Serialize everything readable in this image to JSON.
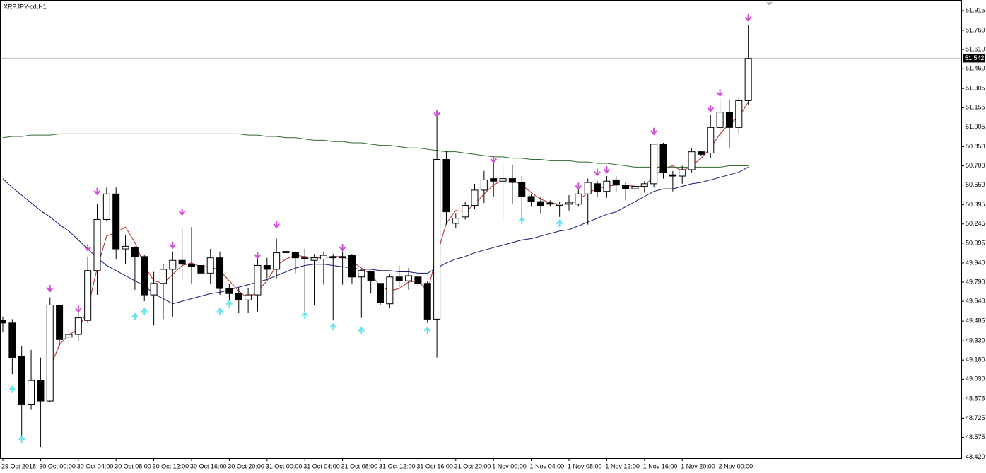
{
  "chart_data": {
    "type": "candlestick",
    "title": "XRPJPY-cd,H1",
    "categories": [
      "29 Oct 2018",
      null,
      null,
      null,
      "30 Oct 00:00",
      null,
      null,
      null,
      "30 Oct 04:00",
      null,
      null,
      null,
      "30 Oct 08:00",
      null,
      null,
      null,
      "30 Oct 12:00",
      null,
      null,
      null,
      "30 Oct 16:00",
      null,
      null,
      null,
      "30 Oct 20:00",
      null,
      null,
      null,
      "31 Oct 00:00",
      null,
      null,
      null,
      "31 Oct 04:00",
      null,
      null,
      null,
      "31 Oct 08:00",
      null,
      null,
      null,
      "31 Oct 12:00",
      null,
      null,
      null,
      "31 Oct 16:00",
      null,
      null,
      null,
      "31 Oct 20:00",
      null,
      null,
      null,
      "1 Nov 00:00",
      null,
      null,
      null,
      "1 Nov 04:00",
      null,
      null,
      null,
      "1 Nov 08:00",
      null,
      null,
      null,
      "1 Nov 12:00",
      null,
      null,
      null,
      "1 Nov 16:00",
      null,
      null,
      null,
      "1 Nov 20:00",
      null,
      null,
      null,
      "2 Nov 00:00",
      null,
      null,
      null
    ],
    "open": [
      49.49,
      49.47,
      49.21,
      48.83,
      49.02,
      48.86,
      49.61,
      49.36,
      49.38,
      49.49,
      49.88,
      50.28,
      50.48,
      50.05,
      50.06,
      49.99,
      49.69,
      49.78,
      49.89,
      49.96,
      49.93,
      49.92,
      49.86,
      49.98,
      49.74,
      49.7,
      49.65,
      49.69,
      49.92,
      49.89,
      50.03,
      50.02,
      49.98,
      49.96,
      49.97,
      49.99,
      49.99,
      50.0,
      49.83,
      49.87,
      49.78,
      49.62,
      49.83,
      49.8,
      49.83,
      49.78,
      49.5,
      50.75,
      50.25,
      50.3,
      50.39,
      50.51,
      50.6,
      50.58,
      50.6,
      50.57,
      50.46,
      50.42,
      50.41,
      50.39,
      50.4,
      50.4,
      50.48,
      50.56,
      50.5,
      50.59,
      50.55,
      50.52,
      50.54,
      50.56,
      50.87,
      50.63,
      50.62,
      50.67,
      50.81,
      50.8,
      51.0,
      51.12,
      51.0,
      51.21
    ],
    "high": [
      49.52,
      49.5,
      49.29,
      49.26,
      49.2,
      49.67,
      49.61,
      49.45,
      49.55,
      49.99,
      50.4,
      50.53,
      50.53,
      50.16,
      50.07,
      50.0,
      49.87,
      49.93,
      50.03,
      50.21,
      50.22,
      49.92,
      50.05,
      50.03,
      49.78,
      49.74,
      49.74,
      49.97,
      49.98,
      50.13,
      50.14,
      50.03,
      50.05,
      50.01,
      50.03,
      50.01,
      50.03,
      50.01,
      49.89,
      49.88,
      49.78,
      49.85,
      49.92,
      49.9,
      49.85,
      49.8,
      51.1,
      50.82,
      50.33,
      50.42,
      50.56,
      50.66,
      50.76,
      50.73,
      50.71,
      50.62,
      50.48,
      50.46,
      50.43,
      50.42,
      50.47,
      50.53,
      50.6,
      50.58,
      50.62,
      50.62,
      50.57,
      50.56,
      50.58,
      50.87,
      50.88,
      50.66,
      50.7,
      50.84,
      50.82,
      51.1,
      51.22,
      51.22,
      51.24,
      51.8
    ],
    "low": [
      49.4,
      49.07,
      48.59,
      48.79,
      48.5,
      48.85,
      49.29,
      49.3,
      49.33,
      49.47,
      49.69,
      50.27,
      49.97,
      49.93,
      49.73,
      49.64,
      49.45,
      49.5,
      49.52,
      49.81,
      49.78,
      49.85,
      49.78,
      49.69,
      49.65,
      49.55,
      49.55,
      49.56,
      49.82,
      49.82,
      49.92,
      49.86,
      49.53,
      49.61,
      49.77,
      49.49,
      49.77,
      49.78,
      49.51,
      49.7,
      49.61,
      49.59,
      49.75,
      49.73,
      49.75,
      49.47,
      49.2,
      50.24,
      50.21,
      50.28,
      50.36,
      50.41,
      50.46,
      50.27,
      50.4,
      50.28,
      50.38,
      50.33,
      50.38,
      50.3,
      50.35,
      50.38,
      50.24,
      50.46,
      50.45,
      50.5,
      50.43,
      50.5,
      50.49,
      50.53,
      50.6,
      50.5,
      50.56,
      50.65,
      50.78,
      50.76,
      50.92,
      50.84,
      50.95,
      51.18
    ],
    "close": [
      49.47,
      49.2,
      48.83,
      49.02,
      48.86,
      49.61,
      49.34,
      49.38,
      49.51,
      49.88,
      50.28,
      50.48,
      50.05,
      50.07,
      49.99,
      49.69,
      49.78,
      49.89,
      49.96,
      49.93,
      49.91,
      49.86,
      49.98,
      49.74,
      49.7,
      49.65,
      49.69,
      49.92,
      49.89,
      50.02,
      50.02,
      49.98,
      49.97,
      49.98,
      50.0,
      49.98,
      49.98,
      49.83,
      49.88,
      49.8,
      49.63,
      49.83,
      49.8,
      49.84,
      49.78,
      49.5,
      50.75,
      50.34,
      50.29,
      50.39,
      50.51,
      50.59,
      50.58,
      50.6,
      50.57,
      50.46,
      50.42,
      50.39,
      50.4,
      50.4,
      50.41,
      50.48,
      50.57,
      50.5,
      50.58,
      50.55,
      50.52,
      50.54,
      50.56,
      50.87,
      50.65,
      50.62,
      50.67,
      50.81,
      50.79,
      51.0,
      51.12,
      51.0,
      51.21,
      51.54
    ],
    "up_color": "#ffffff",
    "down_color": "#000000",
    "lines": [
      {
        "color": "#b22222",
        "values": [
          null,
          null,
          null,
          null,
          null,
          49.12,
          49.3,
          49.38,
          49.42,
          49.58,
          49.9,
          50.15,
          50.18,
          50.22,
          50.1,
          49.92,
          49.8,
          49.78,
          49.85,
          49.92,
          49.94,
          49.91,
          49.91,
          49.88,
          49.8,
          49.72,
          49.66,
          49.72,
          49.8,
          49.92,
          49.97,
          50.0,
          49.99,
          49.98,
          49.98,
          49.99,
          49.99,
          49.95,
          49.9,
          49.85,
          49.76,
          49.72,
          49.74,
          49.79,
          49.8,
          49.72,
          50.0,
          50.25,
          50.35,
          50.34,
          50.4,
          50.48,
          50.55,
          50.59,
          50.59,
          50.55,
          50.49,
          50.44,
          50.41,
          50.4,
          50.4,
          50.43,
          50.49,
          50.52,
          50.54,
          50.55,
          50.55,
          50.54,
          50.54,
          50.62,
          50.68,
          50.7,
          50.66,
          50.7,
          50.76,
          50.84,
          50.95,
          51.03,
          51.08,
          51.2
        ]
      },
      {
        "color": "#191970",
        "values": [
          50.6,
          50.53,
          50.47,
          50.41,
          50.35,
          50.3,
          50.24,
          50.19,
          50.12,
          50.05,
          49.98,
          49.92,
          49.88,
          49.84,
          49.8,
          49.76,
          49.7,
          49.66,
          49.62,
          49.64,
          49.66,
          49.68,
          49.7,
          49.71,
          49.73,
          49.75,
          49.77,
          49.79,
          49.81,
          49.84,
          49.87,
          49.9,
          49.92,
          49.93,
          49.93,
          49.92,
          49.91,
          49.9,
          49.89,
          49.89,
          49.88,
          49.88,
          49.87,
          49.87,
          49.86,
          49.86,
          49.9,
          49.94,
          49.97,
          49.99,
          50.02,
          50.04,
          50.06,
          50.08,
          50.1,
          50.12,
          50.13,
          50.15,
          50.17,
          50.19,
          50.2,
          50.23,
          50.26,
          50.29,
          50.32,
          50.34,
          50.38,
          50.42,
          50.46,
          50.5,
          50.52,
          50.52,
          50.54,
          50.56,
          50.57,
          50.59,
          50.61,
          50.63,
          50.65,
          50.69
        ]
      },
      {
        "color": "#2e6b2e",
        "values": [
          50.92,
          50.93,
          50.93,
          50.94,
          50.94,
          50.94,
          50.95,
          50.95,
          50.95,
          50.95,
          50.95,
          50.95,
          50.95,
          50.95,
          50.95,
          50.95,
          50.95,
          50.95,
          50.95,
          50.95,
          50.95,
          50.95,
          50.95,
          50.95,
          50.95,
          50.95,
          50.94,
          50.94,
          50.93,
          50.93,
          50.92,
          50.92,
          50.91,
          50.9,
          50.9,
          50.89,
          50.89,
          50.88,
          50.88,
          50.87,
          50.86,
          50.86,
          50.85,
          50.84,
          50.84,
          50.83,
          50.82,
          50.81,
          50.81,
          50.8,
          50.79,
          50.78,
          50.77,
          50.77,
          50.76,
          50.76,
          50.75,
          50.75,
          50.74,
          50.74,
          50.74,
          50.73,
          50.73,
          50.72,
          50.72,
          50.71,
          50.7,
          50.69,
          50.69,
          50.69,
          50.69,
          50.69,
          50.69,
          50.69,
          50.69,
          50.69,
          50.69,
          50.7,
          50.7,
          50.7
        ]
      }
    ],
    "up_arrows": {
      "color": "#5fe3f0",
      "values": [
        null,
        48.95,
        48.56,
        null,
        null,
        null,
        null,
        null,
        null,
        null,
        null,
        null,
        null,
        null,
        49.52,
        49.56,
        null,
        null,
        null,
        null,
        null,
        null,
        null,
        49.56,
        49.62,
        null,
        null,
        null,
        null,
        null,
        null,
        null,
        49.53,
        null,
        null,
        49.44,
        null,
        null,
        49.41,
        null,
        null,
        null,
        null,
        null,
        null,
        49.41,
        null,
        null,
        null,
        null,
        null,
        null,
        null,
        null,
        null,
        50.27,
        null,
        null,
        null,
        50.25,
        null,
        null,
        null,
        null,
        null,
        null,
        null,
        null,
        null,
        null,
        null,
        null,
        null,
        null,
        null,
        null,
        null,
        null,
        null,
        null
      ]
    },
    "down_arrows": {
      "color": "#d24ad8",
      "values": [
        null,
        null,
        null,
        null,
        null,
        49.74,
        null,
        null,
        49.58,
        50.06,
        50.5,
        null,
        null,
        null,
        null,
        null,
        null,
        null,
        50.08,
        50.34,
        null,
        null,
        null,
        null,
        null,
        null,
        null,
        50.0,
        null,
        50.24,
        null,
        null,
        null,
        null,
        null,
        null,
        50.06,
        null,
        null,
        null,
        null,
        null,
        null,
        null,
        null,
        null,
        51.11,
        null,
        null,
        null,
        null,
        null,
        50.75,
        null,
        null,
        null,
        null,
        null,
        null,
        null,
        null,
        50.54,
        null,
        50.65,
        50.67,
        null,
        null,
        null,
        null,
        50.97,
        null,
        null,
        null,
        null,
        null,
        51.15,
        51.27,
        null,
        null,
        51.86
      ]
    },
    "last_price": 51.542,
    "ylim": [
      48.412,
      51.998
    ],
    "yticks": [
      51.915,
      {
        "value": 51.76,
        "label": "51.760"
      },
      {
        "value": 51.61,
        "label": "51.610"
      },
      {
        "value": 51.46,
        "label": "51.460"
      },
      51.305,
      51.155,
      51.005,
      {
        "value": 50.85,
        "label": "50.850"
      },
      {
        "value": 50.7,
        "label": "50.700"
      },
      {
        "value": 50.55,
        "label": "50.550"
      },
      50.395,
      50.245,
      50.095,
      {
        "value": 49.94,
        "label": "49.940"
      },
      {
        "value": 49.79,
        "label": "49.790"
      },
      {
        "value": 49.64,
        "label": "49.640"
      },
      49.485,
      {
        "value": 49.33,
        "label": "49.330"
      },
      {
        "value": 49.18,
        "label": "49.180"
      },
      {
        "value": 49.03,
        "label": "49.030"
      },
      48.875,
      48.725,
      48.575,
      {
        "value": 48.42,
        "label": "48.420"
      }
    ]
  }
}
